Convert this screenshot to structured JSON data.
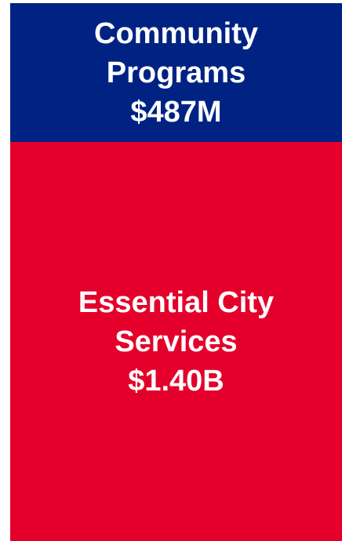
{
  "chart_data": {
    "type": "treemap",
    "categories": [
      "Community Programs",
      "Essential City Services"
    ],
    "values": [
      487000000,
      1400000000
    ],
    "value_labels": [
      "$487M",
      "$1.40B"
    ],
    "colors": [
      "#002383",
      "#e4002b"
    ]
  }
}
